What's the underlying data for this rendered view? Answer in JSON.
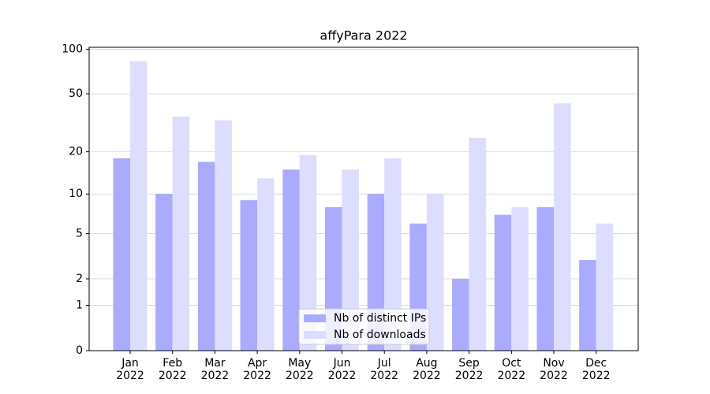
{
  "chart_data": {
    "type": "bar",
    "title": "affyPara 2022",
    "categories": [
      "Jan\n2022",
      "Feb\n2022",
      "Mar\n2022",
      "Apr\n2022",
      "May\n2022",
      "Jun\n2022",
      "Jul\n2022",
      "Aug\n2022",
      "Sep\n2022",
      "Oct\n2022",
      "Nov\n2022",
      "Dec\n2022"
    ],
    "series": [
      {
        "name": "Nb of distinct IPs",
        "color": "#aaaaff",
        "values": [
          18,
          10,
          17,
          9,
          15,
          8,
          10,
          6,
          2,
          7,
          8,
          3
        ]
      },
      {
        "name": "Nb of downloads",
        "color": "#ddddff",
        "values": [
          83,
          35,
          33,
          13,
          19,
          15,
          18,
          10,
          25,
          8,
          43,
          6
        ]
      }
    ],
    "yscale": "log1p",
    "ylim": [
      0,
      103
    ],
    "yticks": [
      0,
      1,
      2,
      5,
      10,
      20,
      50,
      100
    ],
    "grid": true,
    "legend": "lower center"
  }
}
